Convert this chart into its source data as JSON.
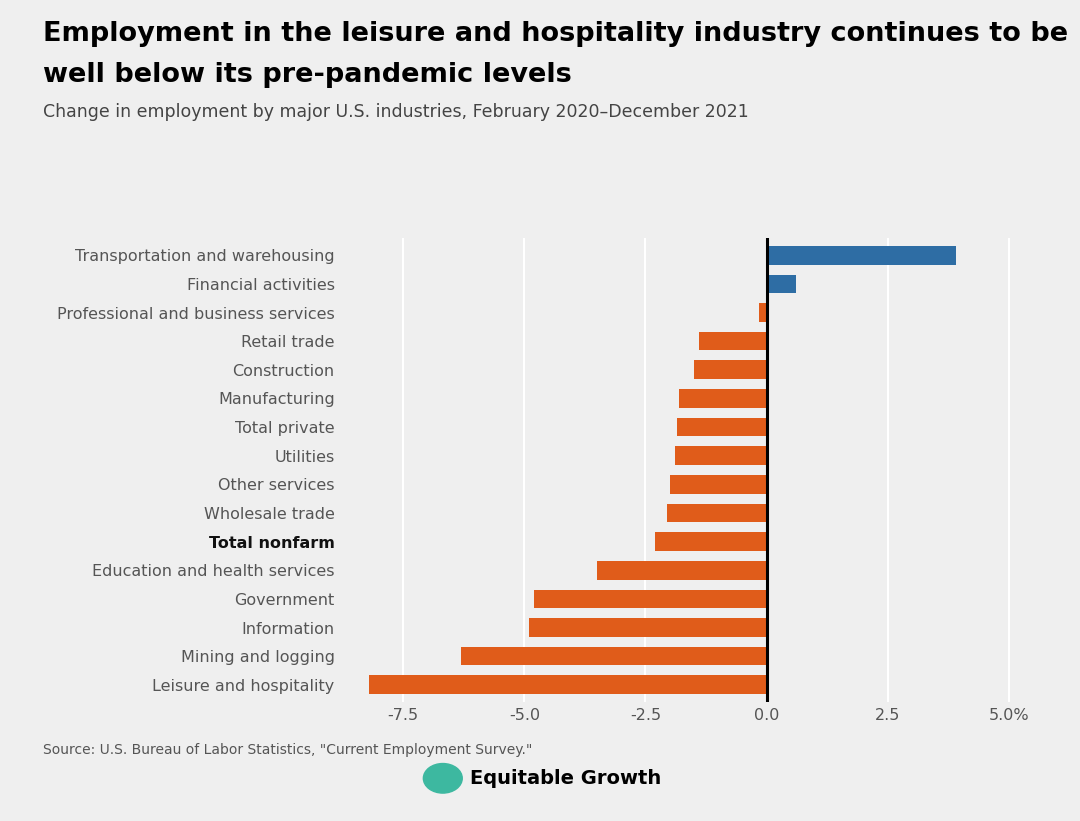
{
  "title_line1": "Employment in the leisure and hospitality industry continues to be",
  "title_line2": "well below its pre-pandemic levels",
  "subtitle": "Change in employment by major U.S. industries, February 2020–December 2021",
  "source": "Source: U.S. Bureau of Labor Statistics, \"Current Employment Survey.\"",
  "categories": [
    "Transportation and warehousing",
    "Financial activities",
    "Professional and business services",
    "Retail trade",
    "Construction",
    "Manufacturing",
    "Total private",
    "Utilities",
    "Other services",
    "Wholesale trade",
    "Total nonfarm",
    "Education and health services",
    "Government",
    "Information",
    "Mining and logging",
    "Leisure and hospitality"
  ],
  "values": [
    3.9,
    0.6,
    -0.15,
    -1.4,
    -1.5,
    -1.8,
    -1.85,
    -1.9,
    -2.0,
    -2.05,
    -2.3,
    -3.5,
    -4.8,
    -4.9,
    -6.3,
    -8.2
  ],
  "bar_colors": [
    "#2e6da4",
    "#2e6da4",
    "#e05c1a",
    "#e05c1a",
    "#e05c1a",
    "#e05c1a",
    "#e05c1a",
    "#e05c1a",
    "#e05c1a",
    "#e05c1a",
    "#e05c1a",
    "#e05c1a",
    "#e05c1a",
    "#e05c1a",
    "#e05c1a",
    "#e05c1a"
  ],
  "bold_labels": [
    "Total nonfarm"
  ],
  "xlim": [
    -8.8,
    5.8
  ],
  "xticks": [
    -7.5,
    -5.0,
    -2.5,
    0.0,
    2.5,
    5.0
  ],
  "xtick_labels": [
    "-7.5",
    "-5.0",
    "-2.5",
    "0.0",
    "2.5",
    "5.0%"
  ],
  "background_color": "#efefef",
  "title_fontsize": 19.5,
  "subtitle_fontsize": 12.5,
  "label_fontsize": 11.5,
  "tick_fontsize": 11.5,
  "source_fontsize": 10,
  "logo_text": "Equitable Growth",
  "logo_fontsize": 14
}
